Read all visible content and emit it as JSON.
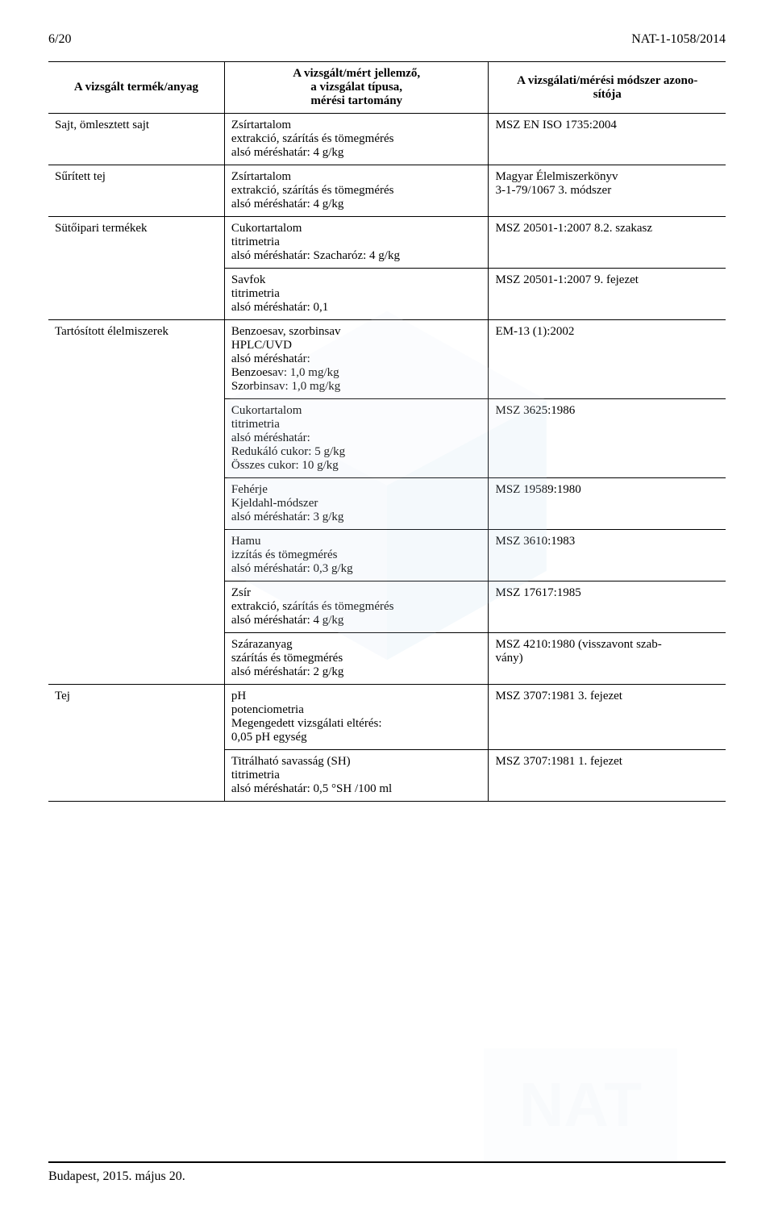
{
  "header": {
    "page_num": "6/20",
    "doc_id": "NAT-1-1058/2014"
  },
  "table": {
    "head": {
      "col1": "A vizsgált termék/anyag",
      "col2a": "A vizsgált/mért jellemző,",
      "col2b": "a vizsgálat típusa,",
      "col2c": "mérési tartomány",
      "col3a": "A vizsgálati/mérési módszer azono-",
      "col3b": "sítója"
    },
    "rows": [
      {
        "c1": "Sajt, ömlesztett sajt",
        "c2": "Zsírtartalom\nextrakció, szárítás és tömegmérés\nalsó méréshatár: 4 g/kg",
        "c3": "MSZ EN ISO 1735:2004"
      },
      {
        "c1": "Sűrített tej",
        "c2": "Zsírtartalom\nextrakció, szárítás és tömegmérés\nalsó méréshatár: 4 g/kg",
        "c3": "Magyar Élelmiszerkönyv\n3-1-79/1067 3. módszer"
      },
      {
        "c1": "Sütőipari termékek",
        "c2": "Cukortartalom\ntitrimetria\nalsó méréshatár: Szacharóz: 4 g/kg",
        "c3": "MSZ 20501-1:2007 8.2. szakasz"
      },
      {
        "c1": "",
        "c2": "Savfok\ntitrimetria\nalsó méréshatár: 0,1",
        "c3": "MSZ 20501-1:2007 9. fejezet"
      },
      {
        "c1": "Tartósított élelmiszerek",
        "c2": "Benzoesav, szorbinsav\nHPLC/UVD\nalsó méréshatár:\nBenzoesav: 1,0 mg/kg\nSzorbinsav: 1,0 mg/kg",
        "c3": "EM-13 (1):2002"
      },
      {
        "c1": "",
        "c2": "Cukortartalom\ntitrimetria\nalsó méréshatár:\nRedukáló cukor: 5 g/kg\nÖsszes cukor: 10 g/kg",
        "c3": "MSZ 3625:1986"
      },
      {
        "c1": "",
        "c2": "Fehérje\nKjeldahl-módszer\nalsó méréshatár: 3 g/kg",
        "c3": "MSZ 19589:1980"
      },
      {
        "c1": "",
        "c2": "Hamu\nizzítás és tömegmérés\nalsó méréshatár: 0,3 g/kg",
        "c3": "MSZ 3610:1983"
      },
      {
        "c1": "",
        "c2": "Zsír\nextrakció, szárítás és tömegmérés\nalsó méréshatár: 4 g/kg",
        "c3": "MSZ 17617:1985"
      },
      {
        "c1": "",
        "c2": "Szárazanyag\nszárítás és tömegmérés\nalsó méréshatár: 2 g/kg",
        "c3": "MSZ 4210:1980 (visszavont szab-\nvány)"
      },
      {
        "c1": "Tej",
        "c2": "pH\npotenciometria\nMegengedett vizsgálati eltérés:\n0,05 pH egység",
        "c3": "MSZ 3707:1981 3. fejezet"
      },
      {
        "c1": "",
        "c2": "Titrálható savasság (SH)\ntitrimetria\nalsó méréshatár: 0,5 °SH /100 ml",
        "c3": "MSZ 3707:1981 1. fejezet"
      }
    ]
  },
  "footer": "Budapest, 2015. május 20.",
  "style": {
    "bg": "#ffffff",
    "text": "#000000",
    "watermark_hex": "#d0e3f2",
    "watermark_opacity": 0.14
  }
}
